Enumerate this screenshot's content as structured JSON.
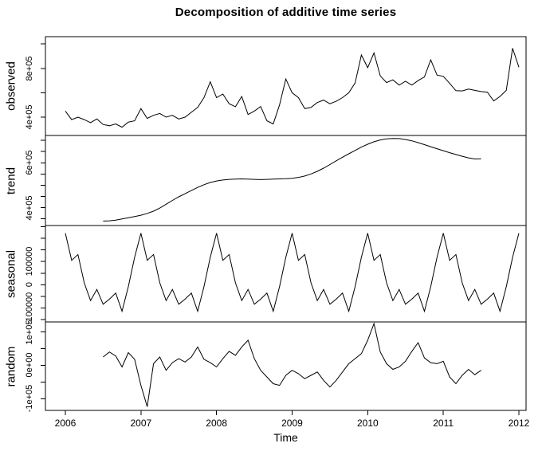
{
  "chart_data": {
    "type": "line",
    "title": "Decomposition of additive time series",
    "xlabel": "Time",
    "line_color": "#000000",
    "background_color": "#ffffff",
    "grid": false,
    "legend": "none",
    "frequency": 12,
    "x_ticks": [
      {
        "value": 2006,
        "label": "2006"
      },
      {
        "value": 2007,
        "label": "2007"
      },
      {
        "value": 2008,
        "label": "2008"
      },
      {
        "value": 2009,
        "label": "2009"
      },
      {
        "value": 2010,
        "label": "2010"
      },
      {
        "value": 2011,
        "label": "2011"
      },
      {
        "value": 2012,
        "label": "2012"
      }
    ],
    "panels": [
      {
        "name": "observed",
        "start": 2006.0,
        "ylim": [
          250000,
          1060000
        ],
        "yticks": [
          {
            "value": 400000,
            "label": "4e+05"
          },
          {
            "value": 600000,
            "label": ""
          },
          {
            "value": 800000,
            "label": "8e+05"
          },
          {
            "value": 1000000,
            "label": ""
          }
        ],
        "values": [
          450000,
          380000,
          400000,
          380000,
          355000,
          385000,
          340000,
          330000,
          345000,
          318000,
          360000,
          370000,
          470000,
          390000,
          415000,
          430000,
          400000,
          415000,
          385000,
          400000,
          440000,
          480000,
          560000,
          690000,
          560000,
          590000,
          510000,
          486000,
          570000,
          422000,
          450000,
          488000,
          370000,
          345000,
          500000,
          713000,
          600000,
          560000,
          470000,
          480000,
          520000,
          540000,
          510000,
          530000,
          560000,
          600000,
          680000,
          910000,
          806000,
          927000,
          738000,
          684000,
          706000,
          663000,
          695000,
          663000,
          700000,
          730000,
          870000,
          745000,
          735000,
          677000,
          617000,
          615000,
          630000,
          620000,
          610000,
          605000,
          533000,
          570000,
          620000,
          965000,
          810000
        ]
      },
      {
        "name": "trend",
        "start": 2006.5,
        "ylim": [
          320000,
          722000
        ],
        "yticks": [
          {
            "value": 350000,
            "label": ""
          },
          {
            "value": 400000,
            "label": "4e+05"
          },
          {
            "value": 450000,
            "label": ""
          },
          {
            "value": 500000,
            "label": ""
          },
          {
            "value": 550000,
            "label": ""
          },
          {
            "value": 600000,
            "label": "6e+05"
          },
          {
            "value": 650000,
            "label": ""
          },
          {
            "value": 700000,
            "label": ""
          }
        ],
        "values": [
          340000,
          341000,
          344000,
          349000,
          355000,
          360000,
          366000,
          374000,
          384000,
          398000,
          415000,
          432000,
          448000,
          462000,
          476000,
          490000,
          502000,
          512000,
          519000,
          523000,
          526000,
          527000,
          528000,
          527000,
          526000,
          525000,
          526000,
          527000,
          528000,
          529000,
          531000,
          535000,
          541000,
          550000,
          562000,
          576000,
          592000,
          609000,
          625000,
          640000,
          655000,
          670000,
          683000,
          694000,
          702000,
          707000,
          709000,
          708000,
          704000,
          698000,
          690000,
          681000,
          672000,
          663000,
          654000,
          645000,
          637000,
          629000,
          622000,
          617000,
          618000
        ]
      },
      {
        "name": "seasonal",
        "start": 2006.0,
        "ylim": [
          -160000,
          255000
        ],
        "yticks": [
          {
            "value": -150000,
            "label": ""
          },
          {
            "value": -100000,
            "label": "-100000"
          },
          {
            "value": -50000,
            "label": ""
          },
          {
            "value": 0,
            "label": "0"
          },
          {
            "value": 50000,
            "label": ""
          },
          {
            "value": 100000,
            "label": "100000"
          },
          {
            "value": 150000,
            "label": ""
          },
          {
            "value": 200000,
            "label": ""
          },
          {
            "value": 250000,
            "label": ""
          }
        ],
        "values": [
          222000,
          105000,
          130000,
          8000,
          -68000,
          -20000,
          -84000,
          -62000,
          -36000,
          -114000,
          -8000,
          118000,
          222000,
          105000,
          130000,
          8000,
          -68000,
          -20000,
          -84000,
          -62000,
          -36000,
          -114000,
          -8000,
          118000,
          222000,
          105000,
          130000,
          8000,
          -68000,
          -20000,
          -84000,
          -62000,
          -36000,
          -114000,
          -8000,
          118000,
          222000,
          105000,
          130000,
          8000,
          -68000,
          -20000,
          -84000,
          -62000,
          -36000,
          -114000,
          -8000,
          118000,
          222000,
          105000,
          130000,
          8000,
          -68000,
          -20000,
          -84000,
          -62000,
          -36000,
          -114000,
          -8000,
          118000,
          222000,
          105000,
          130000,
          8000,
          -68000,
          -20000,
          -84000,
          -62000,
          -36000,
          -114000,
          -8000,
          118000,
          222000
        ]
      },
      {
        "name": "random",
        "start": 2006.5,
        "ylim": [
          -135000,
          130000
        ],
        "yticks": [
          {
            "value": -100000,
            "label": "-1e+05"
          },
          {
            "value": -50000,
            "label": ""
          },
          {
            "value": 0,
            "label": "0e+00"
          },
          {
            "value": 50000,
            "label": ""
          },
          {
            "value": 100000,
            "label": "1e+05"
          }
        ],
        "values": [
          25000,
          40000,
          28000,
          -5000,
          38000,
          18000,
          -60000,
          -124000,
          5000,
          25000,
          -15000,
          8000,
          20000,
          10000,
          25000,
          55000,
          18000,
          8000,
          -5000,
          20000,
          42000,
          30000,
          55000,
          75000,
          20000,
          -15000,
          -35000,
          -55000,
          -60000,
          -30000,
          -15000,
          -25000,
          -40000,
          -30000,
          -20000,
          -45000,
          -65000,
          -45000,
          -20000,
          5000,
          20000,
          35000,
          75000,
          125000,
          40000,
          5000,
          -12000,
          -5000,
          12000,
          42000,
          68000,
          22000,
          8000,
          5000,
          12000,
          -35000,
          -55000,
          -30000,
          -12000,
          -28000,
          -15000
        ]
      }
    ]
  }
}
